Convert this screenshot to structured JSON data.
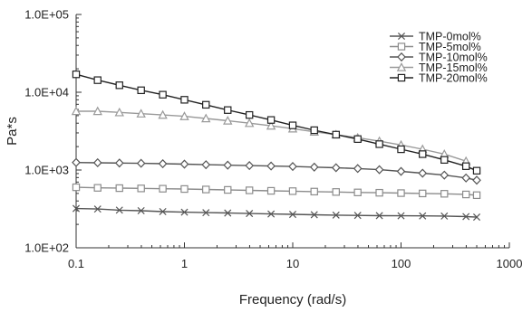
{
  "chart_data": {
    "type": "line",
    "title": "",
    "xlabel": "Frequency (rad/s)",
    "ylabel": "Pa*s",
    "x_scale": "log",
    "y_scale": "log",
    "xlim": [
      0.1,
      1000
    ],
    "ylim": [
      100,
      100000
    ],
    "x_ticks": [
      "0.1",
      "1",
      "10",
      "100",
      "1000"
    ],
    "y_ticks": [
      "1.0E+02",
      "1.0E+03",
      "1.0E+04",
      "1.0E+05"
    ],
    "grid": false,
    "legend_position": "top-right",
    "x": [
      0.1,
      0.158,
      0.251,
      0.398,
      0.631,
      1,
      1.58,
      2.51,
      3.98,
      6.31,
      10,
      15.8,
      25.1,
      39.8,
      63.1,
      100,
      158,
      251,
      398,
      500
    ],
    "series": [
      {
        "name": "TMP-0mol%",
        "marker": "x",
        "color": "#555555",
        "values": [
          320,
          315,
          305,
          300,
          292,
          287,
          283,
          280,
          276,
          272,
          269,
          266,
          263,
          261,
          259,
          258,
          257,
          256,
          252,
          248
        ]
      },
      {
        "name": "TMP-5mol%",
        "marker": "square",
        "color": "#8c8c8c",
        "values": [
          600,
          590,
          585,
          580,
          575,
          570,
          562,
          555,
          548,
          540,
          535,
          528,
          522,
          515,
          510,
          505,
          500,
          495,
          485,
          475
        ]
      },
      {
        "name": "TMP-10mol%",
        "marker": "diamond",
        "color": "#555555",
        "values": [
          1250,
          1240,
          1230,
          1220,
          1205,
          1190,
          1170,
          1155,
          1140,
          1125,
          1110,
          1090,
          1070,
          1045,
          1010,
          960,
          910,
          860,
          790,
          740
        ]
      },
      {
        "name": "TMP-15mol%",
        "marker": "triangle",
        "color": "#9a9a9a",
        "values": [
          5700,
          5700,
          5500,
          5300,
          5100,
          4900,
          4600,
          4300,
          4000,
          3700,
          3400,
          3100,
          2850,
          2600,
          2350,
          2100,
          1850,
          1600,
          1300,
          null
        ]
      },
      {
        "name": "TMP-20mol%",
        "marker": "square",
        "color": "#222222",
        "values": [
          17000,
          14300,
          12300,
          10600,
          9300,
          8000,
          6900,
          5900,
          5100,
          4400,
          3750,
          3250,
          2850,
          2500,
          2150,
          1850,
          1600,
          1350,
          1120,
          980
        ]
      }
    ]
  }
}
